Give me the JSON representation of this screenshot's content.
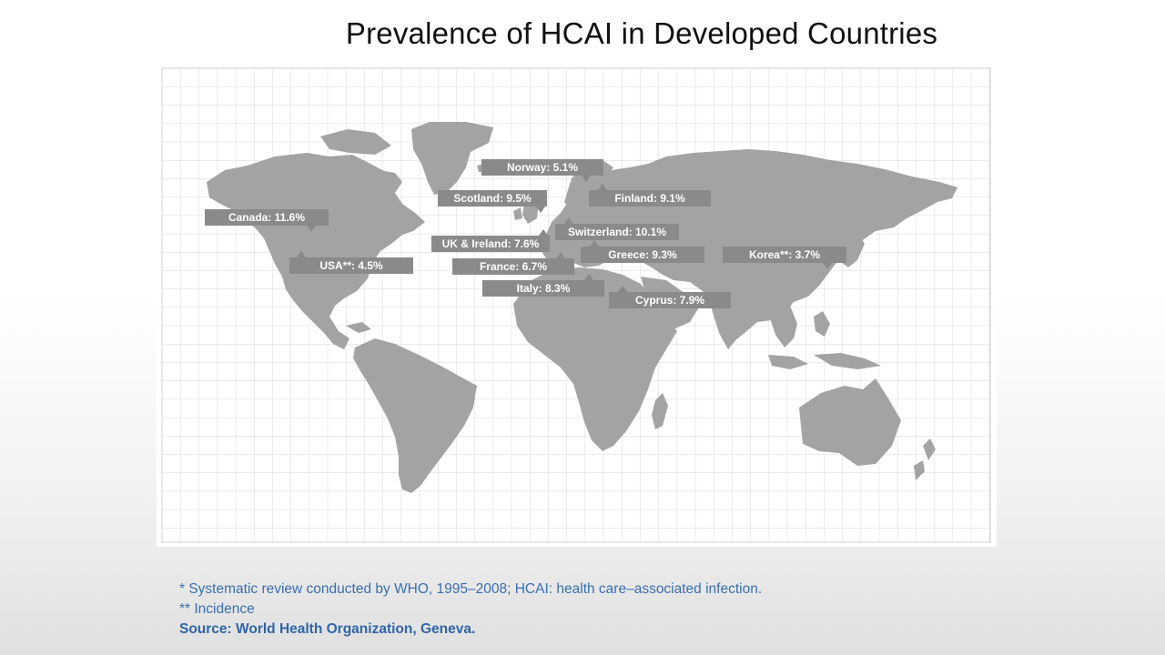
{
  "title": "Prevalence of HCAI in Developed Countries",
  "map": {
    "land_color": "#a3a3a3",
    "grid_color": "#d7d7d7",
    "callout_color": "#8a8a8a",
    "labels": [
      {
        "id": "canada",
        "text": "Canada: 11.6%"
      },
      {
        "id": "usa",
        "text": "USA**: 4.5%"
      },
      {
        "id": "norway",
        "text": "Norway: 5.1%"
      },
      {
        "id": "scotland",
        "text": "Scotland: 9.5%"
      },
      {
        "id": "finland",
        "text": "Finland: 9.1%"
      },
      {
        "id": "switzerland",
        "text": "Switzerland: 10.1%"
      },
      {
        "id": "uk_ireland",
        "text": "UK & Ireland: 7.6%"
      },
      {
        "id": "greece",
        "text": "Greece: 9.3%"
      },
      {
        "id": "korea",
        "text": "Korea**: 3.7%"
      },
      {
        "id": "france",
        "text": "France: 6.7%"
      },
      {
        "id": "italy",
        "text": "Italy: 8.3%"
      },
      {
        "id": "cyprus",
        "text": "Cyprus: 7.9%"
      }
    ]
  },
  "footnotes": {
    "line1": "* Systematic review conducted by WHO, 1995–2008; HCAI: health care–associated infection.",
    "line2": "** Incidence",
    "source": "Source: World Health Organization, Geneva."
  }
}
